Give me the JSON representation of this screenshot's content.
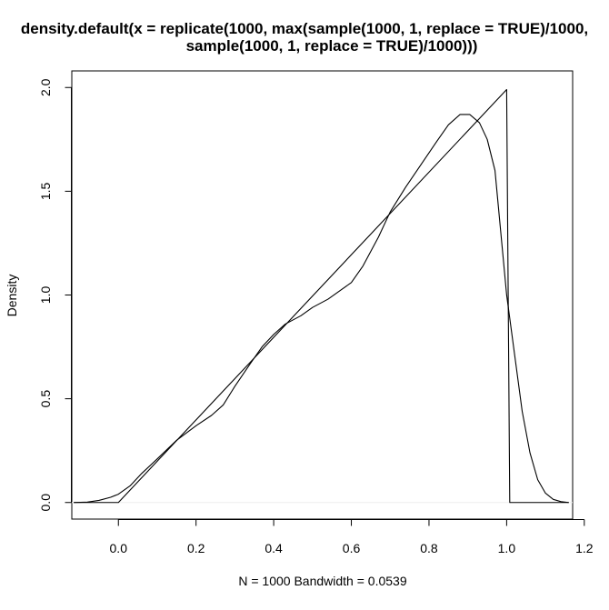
{
  "chart_data": {
    "type": "line",
    "title_lines": [
      "density.default(x = replicate(1000, max(sample(1000, 1, replace = TRUE)/1000,",
      "sample(1000, 1, replace = TRUE)/1000)))"
    ],
    "xlabel": "N = 1000   Bandwidth = 0.0539",
    "ylabel": "Density",
    "xlim": [
      -0.12,
      1.17
    ],
    "ylim": [
      -0.08,
      2.08
    ],
    "x_ticks": [
      0.0,
      0.2,
      0.4,
      0.6,
      0.8,
      1.0,
      1.2
    ],
    "x_tick_labels": [
      "0.0",
      "0.2",
      "0.4",
      "0.6",
      "0.8",
      "1.0",
      "1.2"
    ],
    "y_ticks": [
      0.0,
      0.5,
      1.0,
      1.5,
      2.0
    ],
    "y_tick_labels": [
      "0.0",
      "0.5",
      "1.0",
      "1.5",
      "2.0"
    ],
    "grid": false,
    "legend": "none",
    "line_color": "#000000",
    "baseline_color": "#eeeeee",
    "series": [
      {
        "x": [
          -0.115,
          -0.08,
          -0.05,
          -0.02,
          0.0,
          0.03,
          0.06,
          0.1,
          0.15,
          0.2,
          0.24,
          0.27,
          0.3,
          0.34,
          0.37,
          0.4,
          0.43,
          0.47,
          0.5,
          0.54,
          0.57,
          0.6,
          0.63,
          0.67,
          0.7,
          0.74,
          0.78,
          0.82,
          0.85,
          0.88,
          0.905,
          0.93,
          0.95,
          0.97,
          0.99,
          1.0,
          1.02,
          1.04,
          1.06,
          1.08,
          1.1,
          1.12,
          1.14,
          1.16
        ],
        "y": [
          0.0,
          0.002,
          0.01,
          0.025,
          0.04,
          0.08,
          0.14,
          0.21,
          0.3,
          0.37,
          0.42,
          0.47,
          0.56,
          0.67,
          0.75,
          0.81,
          0.86,
          0.9,
          0.94,
          0.98,
          1.02,
          1.06,
          1.14,
          1.28,
          1.4,
          1.52,
          1.63,
          1.74,
          1.82,
          1.87,
          1.87,
          1.83,
          1.75,
          1.6,
          1.2,
          1.0,
          0.72,
          0.44,
          0.24,
          0.11,
          0.045,
          0.015,
          0.004,
          0.0
        ]
      },
      {
        "x": [
          -0.115,
          0.0,
          1.0,
          1.008,
          1.16
        ],
        "y": [
          0.0,
          0.0,
          1.99,
          0.0,
          0.0
        ]
      }
    ]
  }
}
